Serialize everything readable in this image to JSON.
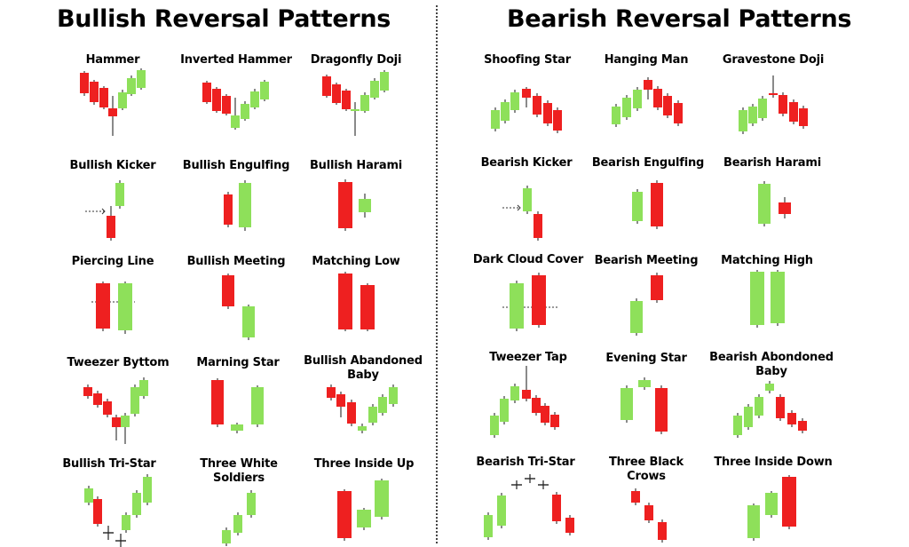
{
  "headers": {
    "bullish": "Bullish Reversal Patterns",
    "bearish": "Bearish Reversal Patterns"
  },
  "colors": {
    "bull": "#8ee05a",
    "bear": "#ee2020",
    "outline": "#3c3c3c"
  },
  "patterns": [
    {
      "id": "hammer",
      "label": "Hammer"
    },
    {
      "id": "inverted-hammer",
      "label": "Inverted Hammer"
    },
    {
      "id": "dragonfly-doji",
      "label": "Dragonfly Doji"
    },
    {
      "id": "bullish-kicker",
      "label": "Bullish Kicker"
    },
    {
      "id": "bullish-engulfing",
      "label": "Bullish Engulfing"
    },
    {
      "id": "bullish-harami",
      "label": "Bullish Harami"
    },
    {
      "id": "piercing-line",
      "label": "Piercing Line"
    },
    {
      "id": "bullish-meeting",
      "label": "Bullish Meeting"
    },
    {
      "id": "matching-low",
      "label": "Matching Low"
    },
    {
      "id": "tweezer-bottom",
      "label": "Tweezer Byttom"
    },
    {
      "id": "morning-star",
      "label": "Marning Star"
    },
    {
      "id": "bullish-abandoned-baby",
      "label": "Bullish Abandoned\nBaby"
    },
    {
      "id": "bullish-tri-star",
      "label": "Bullish Tri-Star"
    },
    {
      "id": "three-white-soldiers",
      "label": "Three White\nSoldiers"
    },
    {
      "id": "three-inside-up",
      "label": "Three Inside Up"
    },
    {
      "id": "shooting-star",
      "label": "Shoofing Star"
    },
    {
      "id": "hanging-man",
      "label": "Hanging Man"
    },
    {
      "id": "gravestone-doji",
      "label": "Gravestone Doji"
    },
    {
      "id": "bearish-kicker",
      "label": "Bearish Kicker"
    },
    {
      "id": "bearish-engulfing",
      "label": "Bearish Engulfing"
    },
    {
      "id": "bearish-harami",
      "label": "Bearish Harami"
    },
    {
      "id": "dark-cloud-cover",
      "label": "Dark Cloud Cover"
    },
    {
      "id": "bearish-meeting",
      "label": "Bearish Meeting"
    },
    {
      "id": "matching-high",
      "label": "Matching High"
    },
    {
      "id": "tweezer-top",
      "label": "Tweezer Tap"
    },
    {
      "id": "evening-star",
      "label": "Evening Star"
    },
    {
      "id": "bearish-abandoned-baby",
      "label": "Bearish Abondoned\nBaby"
    },
    {
      "id": "bearish-tri-star",
      "label": "Bearish Tri-Star"
    },
    {
      "id": "three-black-crows",
      "label": "Three Black\nCrows"
    },
    {
      "id": "three-inside-down",
      "label": "Three Inside Down"
    }
  ]
}
